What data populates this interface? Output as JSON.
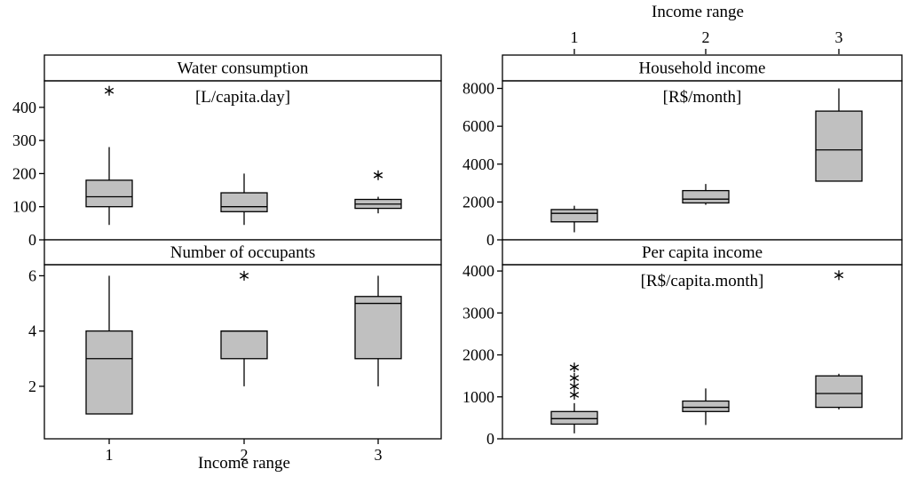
{
  "figure": {
    "x_axis_title": "Income range",
    "x_tick_labels": [
      "1",
      "2",
      "3"
    ]
  },
  "chart_data": [
    {
      "type": "box",
      "title": "Water consumption",
      "subtitle": "[L/capita.day]",
      "categories": [
        "1",
        "2",
        "3"
      ],
      "ylim": [
        0,
        480
      ],
      "yticks": [
        0,
        100,
        200,
        300,
        400
      ],
      "boxes": [
        {
          "category": "1",
          "whisker_low": 45,
          "q1": 100,
          "median": 130,
          "q3": 180,
          "whisker_high": 280,
          "outliers": [
            450
          ]
        },
        {
          "category": "2",
          "whisker_low": 45,
          "q1": 85,
          "median": 100,
          "q3": 142,
          "whisker_high": 200,
          "outliers": []
        },
        {
          "category": "3",
          "whisker_low": 80,
          "q1": 95,
          "median": 108,
          "q3": 122,
          "whisker_high": 130,
          "outliers": [
            195
          ]
        }
      ]
    },
    {
      "type": "box",
      "title": "Household income",
      "subtitle": "[R$/month]",
      "categories": [
        "1",
        "2",
        "3"
      ],
      "ylim": [
        0,
        8400
      ],
      "yticks": [
        0,
        2000,
        4000,
        6000,
        8000
      ],
      "boxes": [
        {
          "category": "1",
          "whisker_low": 400,
          "q1": 950,
          "median": 1400,
          "q3": 1600,
          "whisker_high": 1800,
          "outliers": []
        },
        {
          "category": "2",
          "whisker_low": 1850,
          "q1": 1950,
          "median": 2150,
          "q3": 2600,
          "whisker_high": 2950,
          "outliers": []
        },
        {
          "category": "3",
          "whisker_low": 3100,
          "q1": 3100,
          "median": 4750,
          "q3": 6800,
          "whisker_high": 8000,
          "outliers": []
        }
      ]
    },
    {
      "type": "box",
      "title": "Number of occupants",
      "subtitle": "",
      "categories": [
        "1",
        "2",
        "3"
      ],
      "ylim": [
        0.1,
        6.4
      ],
      "yticks": [
        2,
        4,
        6
      ],
      "boxes": [
        {
          "category": "1",
          "whisker_low": 1,
          "q1": 1,
          "median": 3,
          "q3": 4,
          "whisker_high": 6,
          "outliers": []
        },
        {
          "category": "2",
          "whisker_low": 2,
          "q1": 3,
          "median": 4,
          "q3": 4,
          "whisker_high": 4,
          "outliers": [
            6
          ]
        },
        {
          "category": "3",
          "whisker_low": 2,
          "q1": 3,
          "median": 5,
          "q3": 5.25,
          "whisker_high": 6,
          "outliers": []
        }
      ]
    },
    {
      "type": "box",
      "title": "Per capita income",
      "subtitle": "[R$/capita.month]",
      "categories": [
        "1",
        "2",
        "3"
      ],
      "ylim": [
        0,
        4150
      ],
      "yticks": [
        0,
        1000,
        2000,
        3000,
        4000
      ],
      "boxes": [
        {
          "category": "1",
          "whisker_low": 130,
          "q1": 350,
          "median": 480,
          "q3": 650,
          "whisker_high": 850,
          "outliers": [
            1050,
            1250,
            1450,
            1700
          ]
        },
        {
          "category": "2",
          "whisker_low": 330,
          "q1": 650,
          "median": 750,
          "q3": 900,
          "whisker_high": 1200,
          "outliers": []
        },
        {
          "category": "3",
          "whisker_low": 700,
          "q1": 750,
          "median": 1080,
          "q3": 1500,
          "whisker_high": 1550,
          "outliers": [
            3900
          ]
        }
      ]
    }
  ]
}
